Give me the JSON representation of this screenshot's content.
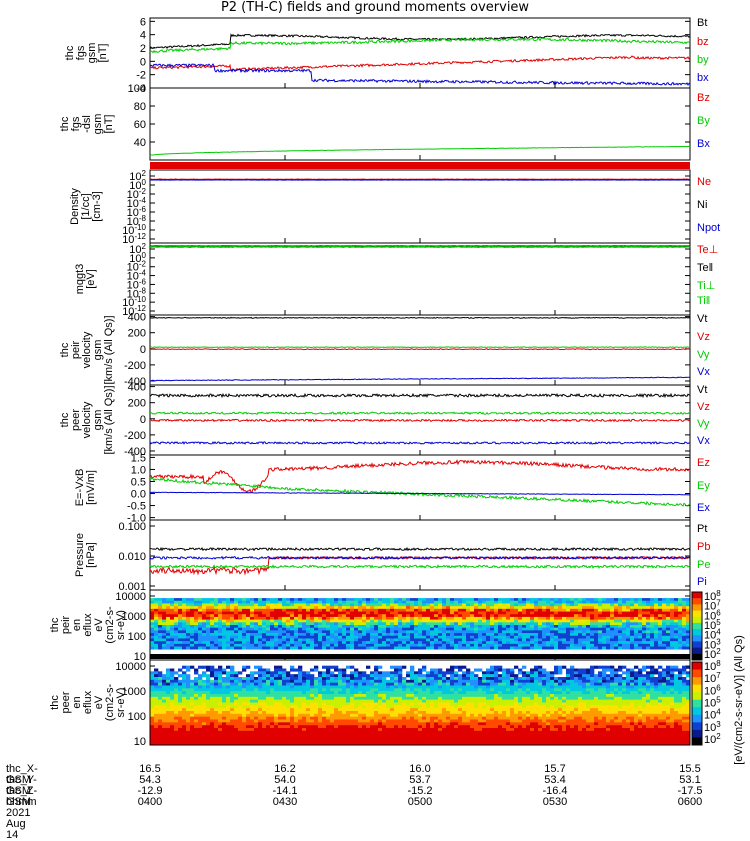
{
  "title": "P2 (TH-C) fields and ground moments overview",
  "chart_data": [
    {
      "type": "line",
      "ylabel": [
        "thc",
        "fgs",
        "gsm",
        "[nT]"
      ],
      "yticks": [
        "6",
        "4",
        "2",
        "0",
        "-2",
        "-4"
      ],
      "ylim": [
        -4,
        6.5
      ],
      "series": [
        {
          "name": "Bt",
          "color": "#000000"
        },
        {
          "name": "bz",
          "color": "#e00000"
        },
        {
          "name": "by",
          "color": "#00cc00"
        },
        {
          "name": "bx",
          "color": "#0000d0"
        }
      ]
    },
    {
      "type": "line",
      "ylabel": [
        "thc",
        "fgs",
        "-dsl",
        "gsm",
        "[nT]"
      ],
      "yticks": [
        "100",
        "80",
        "60",
        "40"
      ],
      "ylim": [
        20,
        100
      ],
      "series": [
        {
          "name": "Bz",
          "color": "#e00000"
        },
        {
          "name": "By",
          "color": "#00cc00"
        },
        {
          "name": "Bx",
          "color": "#0000d0"
        }
      ]
    },
    {
      "type": "line",
      "ylabel": [
        "Density",
        "[1/cc]",
        "[cm-3]"
      ],
      "yticks": [
        "10^2",
        "10^0",
        "10^-2",
        "10^-4",
        "10^-6",
        "10^-8",
        "10^-10",
        "10^-12"
      ],
      "series": [
        {
          "name": "Ne",
          "color": "#e00000"
        },
        {
          "name": "Ni",
          "color": "#000000"
        },
        {
          "name": "Npot",
          "color": "#0000d0"
        }
      ]
    },
    {
      "type": "line",
      "ylabel": [
        "mqgt3",
        "[eV]"
      ],
      "yticks": [
        "10^2",
        "10^0",
        "10^-2",
        "10^-4",
        "10^-6",
        "10^-8",
        "10^-10",
        "10^-12"
      ],
      "series": [
        {
          "name": "Te⊥",
          "color": "#e00000"
        },
        {
          "name": "Te‖",
          "color": "#000000"
        },
        {
          "name": "Ti⊥",
          "color": "#00cc00"
        },
        {
          "name": "Ti‖",
          "color": "#00cc00"
        }
      ]
    },
    {
      "type": "line",
      "ylabel": [
        "thc",
        "peir",
        "velocity",
        "gsm",
        "[km/s (All Qs)]"
      ],
      "yticks": [
        "400",
        "200",
        "0",
        "-200",
        "-400"
      ],
      "ylim": [
        -450,
        420
      ],
      "series": [
        {
          "name": "Vt",
          "color": "#000000"
        },
        {
          "name": "Vz",
          "color": "#e00000"
        },
        {
          "name": "Vy",
          "color": "#00cc00"
        },
        {
          "name": "Vx",
          "color": "#0000d0"
        }
      ]
    },
    {
      "type": "line",
      "ylabel": [
        "thc",
        "peer",
        "velocity",
        "gsm",
        "[km/s (All Qs)]"
      ],
      "yticks": [
        "400",
        "200",
        "0",
        "-200",
        "-400"
      ],
      "ylim": [
        -450,
        420
      ],
      "series": [
        {
          "name": "Vt",
          "color": "#000000"
        },
        {
          "name": "Vz",
          "color": "#e00000"
        },
        {
          "name": "Vy",
          "color": "#00cc00"
        },
        {
          "name": "Vx",
          "color": "#0000d0"
        }
      ]
    },
    {
      "type": "line",
      "ylabel": [
        "E=-VxB",
        "[mV/m]"
      ],
      "yticks": [
        "1.5",
        "1.0",
        "0.5",
        "0.0",
        "-0.5",
        "-1.0"
      ],
      "ylim": [
        -1.1,
        1.6
      ],
      "series": [
        {
          "name": "Ez",
          "color": "#e00000"
        },
        {
          "name": "Ey",
          "color": "#00cc00"
        },
        {
          "name": "Ex",
          "color": "#0000d0"
        }
      ]
    },
    {
      "type": "line",
      "ylabel": [
        "Pressure",
        "[nPa]"
      ],
      "yticks": [
        "0.100",
        "0.010",
        "0.001"
      ],
      "series": [
        {
          "name": "Pt",
          "color": "#000000"
        },
        {
          "name": "Pb",
          "color": "#e00000"
        },
        {
          "name": "Pe",
          "color": "#00cc00"
        },
        {
          "name": "Pi",
          "color": "#0000d0"
        }
      ]
    },
    {
      "type": "heatmap",
      "ylabel": [
        "thc",
        "peir",
        "en",
        "eflux",
        "eV",
        "(cm2-s-",
        "sr-eV)"
      ],
      "yticks": [
        "10000",
        "1000",
        "100",
        "10"
      ]
    },
    {
      "type": "heatmap",
      "ylabel": [
        "thc",
        "peer",
        "en",
        "eflux",
        "eV",
        "(cm2-s-",
        "sr-eV)"
      ],
      "yticks": [
        "10000",
        "1000",
        "100",
        "10"
      ]
    }
  ],
  "colorbar": {
    "labels": [
      "10^8",
      "10^7",
      "10^6",
      "10^5",
      "10^4",
      "10^3",
      "10^2"
    ],
    "caption": "[eV/(cm2-s-sr-eV)] (All Qs)"
  },
  "footer": {
    "rows": [
      {
        "label": "thc_X-GSM",
        "values": [
          "16.5",
          "16.2",
          "16.0",
          "15.7",
          "15.5"
        ]
      },
      {
        "label": "thc_Y-GSM",
        "values": [
          "54.3",
          "54.0",
          "53.7",
          "53.4",
          "53.1"
        ]
      },
      {
        "label": "thc_Z-GSM",
        "values": [
          "-12.9",
          "-14.1",
          "-15.2",
          "-16.4",
          "-17.5"
        ]
      },
      {
        "label": "hhmm",
        "values": [
          "0400",
          "0430",
          "0500",
          "0530",
          "0600"
        ]
      }
    ],
    "date": "2021 Aug 14"
  }
}
